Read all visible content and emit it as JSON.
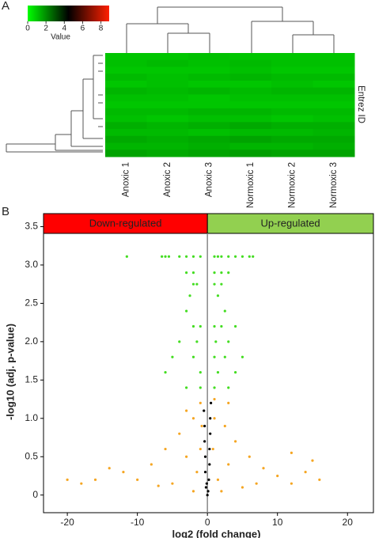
{
  "chart_data": [
    {
      "type": "heatmap",
      "label": "A",
      "categories": [
        "Anoxic 1",
        "Anoxic 2",
        "Anoxic 3",
        "Normoxic 1",
        "Normoxic 2",
        "Normoxic 3"
      ],
      "row_label": "Entrez ID",
      "key_label": "Value",
      "key_xlim": [
        0,
        8.9
      ],
      "key_xticks": [
        0,
        2,
        4,
        6,
        8
      ],
      "colorscale": [
        "#00ff00",
        "#000000",
        "#ff2000"
      ],
      "values": [
        [
          1.0,
          1.0,
          1.1,
          1.0,
          1.0,
          1.0
        ],
        [
          1.1,
          1.2,
          1.1,
          1.2,
          1.1,
          1.1
        ],
        [
          1.0,
          1.0,
          1.0,
          1.1,
          1.0,
          1.0
        ],
        [
          1.2,
          1.1,
          1.2,
          1.3,
          1.2,
          1.2
        ],
        [
          1.0,
          1.1,
          1.0,
          1.0,
          1.1,
          1.0
        ],
        [
          1.3,
          1.2,
          1.3,
          1.2,
          1.3,
          1.3
        ],
        [
          1.1,
          1.1,
          1.0,
          1.1,
          1.1,
          1.1
        ],
        [
          1.0,
          1.0,
          1.0,
          1.0,
          1.0,
          1.0
        ],
        [
          1.2,
          1.2,
          1.3,
          1.3,
          1.2,
          1.2
        ],
        [
          1.1,
          1.0,
          1.1,
          1.1,
          1.0,
          1.1
        ],
        [
          1.4,
          1.3,
          1.4,
          1.5,
          1.4,
          1.4
        ],
        [
          1.2,
          1.2,
          1.1,
          1.2,
          1.2,
          1.3
        ],
        [
          1.5,
          1.4,
          1.5,
          1.6,
          1.5,
          1.5
        ],
        [
          1.3,
          1.3,
          1.4,
          1.3,
          1.3,
          1.4
        ],
        [
          1.6,
          1.5,
          1.6,
          1.7,
          1.6,
          1.6
        ]
      ]
    },
    {
      "type": "scatter",
      "label": "B",
      "x_label": "log2 (fold change)",
      "y_label": "-log10 (adj. p-value)",
      "xlim": [
        -23.4,
        23.7
      ],
      "ylim": [
        -0.23,
        3.67
      ],
      "xticks": [
        -20,
        -10,
        0,
        10,
        20
      ],
      "yticks": [
        0,
        0.5,
        {
          "value": 1,
          "label": "1.0"
        },
        1.5,
        {
          "value": 2,
          "label": "2.0"
        },
        2.5,
        {
          "value": 3,
          "label": "3.0"
        },
        3.5
      ],
      "strips": [
        {
          "label": "Down-regulated",
          "color": "#ff0000"
        },
        {
          "label": "Up-regulated",
          "color": "#92d050"
        }
      ],
      "series": [
        {
          "color": "#f5a623",
          "x": [
            -1,
            1,
            -2,
            2.5,
            -4,
            4,
            -6,
            6,
            -8,
            8,
            -12,
            -14,
            -18,
            -16,
            -10,
            10,
            12,
            14,
            15,
            12,
            16,
            -20,
            -3,
            3,
            -1.5,
            1.5,
            -5,
            5,
            -0.8,
            0.8,
            -2,
            2,
            7,
            -7,
            -1,
            1,
            -3,
            3
          ],
          "values": [
            1.2,
            1.25,
            1.0,
            0.9,
            0.8,
            0.7,
            0.6,
            0.5,
            0.4,
            0.35,
            0.3,
            0.35,
            0.15,
            0.2,
            0.2,
            0.25,
            0.15,
            0.3,
            0.45,
            0.55,
            0.2,
            0.2,
            0.5,
            0.4,
            0.3,
            0.2,
            0.15,
            0.1,
            0.9,
            0.6,
            0.05,
            0.05,
            0.15,
            0.12,
            0.6,
            1.0,
            1.1,
            1.2
          ]
        },
        {
          "color": "#44dd22",
          "x": [
            -11.5,
            -6.5,
            -6,
            -5.5,
            -4,
            -3,
            -2,
            -1,
            1,
            1.5,
            2,
            3,
            4,
            5,
            6,
            6.5,
            -3,
            -2,
            1,
            2,
            3,
            -2,
            -1.5,
            1,
            2,
            -2.5,
            1.5,
            -3,
            2.5,
            -2,
            -1,
            1,
            2,
            4,
            -4,
            -1.5,
            1.2,
            3,
            -5,
            -2,
            1,
            2.5,
            5,
            -6,
            -1,
            1.5,
            4,
            -3,
            -1,
            1,
            3
          ],
          "values": [
            3.11,
            3.11,
            3.11,
            3.11,
            3.11,
            3.11,
            3.11,
            3.11,
            3.11,
            3.11,
            3.11,
            3.11,
            3.11,
            3.11,
            3.11,
            3.11,
            2.9,
            2.9,
            2.9,
            2.9,
            2.9,
            2.75,
            2.75,
            2.75,
            2.75,
            2.6,
            2.6,
            2.4,
            2.4,
            2.2,
            2.2,
            2.2,
            2.2,
            2.2,
            2.0,
            2.0,
            2.0,
            2.0,
            1.8,
            1.8,
            1.8,
            1.8,
            1.8,
            1.6,
            1.6,
            1.6,
            1.6,
            1.4,
            1.4,
            1.4,
            1.4
          ]
        },
        {
          "color": "#000000",
          "x": [
            0,
            -0.2,
            0.2,
            -0.3,
            0.3,
            -0.3,
            0.3,
            -0.4,
            0.4,
            -0.4,
            0.4,
            -0.5,
            0.5,
            0.1,
            -0.1
          ],
          "values": [
            0,
            0.1,
            0.2,
            0.3,
            0.4,
            0.5,
            0.6,
            0.7,
            0.8,
            0.9,
            1.0,
            1.1,
            1.2,
            0.05,
            0.15
          ]
        }
      ]
    }
  ]
}
